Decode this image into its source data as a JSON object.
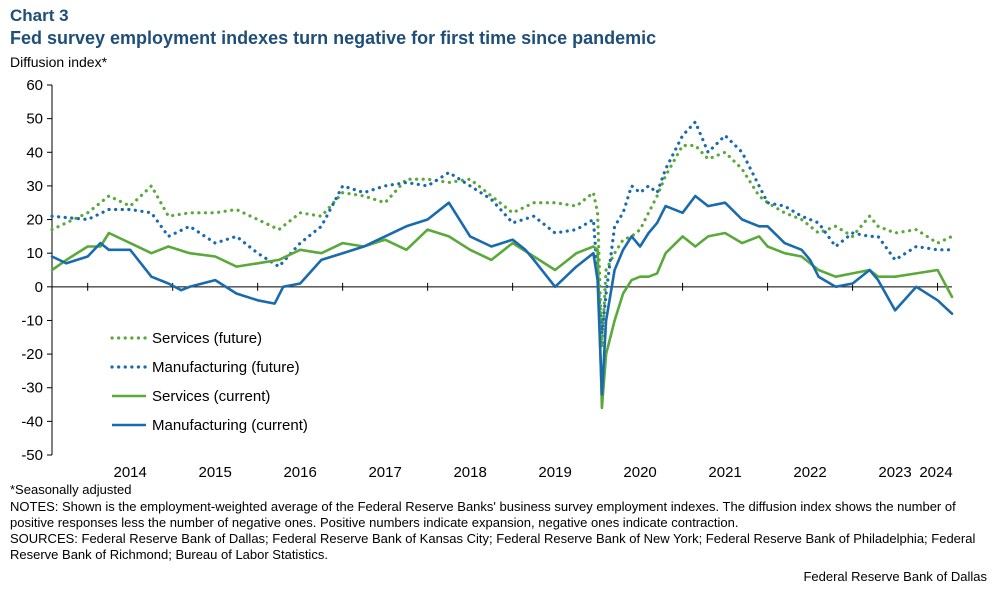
{
  "header": {
    "chart_number": "Chart 3",
    "title": "Fed survey employment indexes turn negative for first time since pandemic",
    "y_label": "Diffusion index*"
  },
  "colors": {
    "services": "#5aa93a",
    "manufacturing": "#1a6aae",
    "title": "#1f4e79"
  },
  "chart_data": {
    "type": "line",
    "title": "Fed survey employment indexes turn negative for first time since pandemic",
    "ylabel": "Diffusion index*",
    "xlabel": "",
    "ylim": [
      -50,
      60
    ],
    "yticks": [
      "60",
      "50",
      "40",
      "30",
      "20",
      "10",
      "0",
      "-10",
      "-20",
      "-30",
      "-40",
      "-50"
    ],
    "ytick_values": [
      60,
      50,
      40,
      30,
      20,
      10,
      0,
      -10,
      -20,
      -30,
      -40,
      -50
    ],
    "xlim": [
      2013.58,
      2024.17
    ],
    "xtick_labels": [
      "2014",
      "2015",
      "2016",
      "2017",
      "2018",
      "2019",
      "2020",
      "2021",
      "2022",
      "2023",
      "2024"
    ],
    "xtick_centers": [
      2014.5,
      2015.5,
      2016.5,
      2017.5,
      2018.5,
      2019.5,
      2020.5,
      2021.5,
      2022.5,
      2023.5,
      2024.5
    ],
    "grid": false,
    "legend_position": "bottom-left",
    "series": [
      {
        "name": "Services (future)",
        "style": "dotted",
        "color_key": "services",
        "x": [
          2013.58,
          2014.0,
          2014.25,
          2014.5,
          2014.75,
          2014.95,
          2015.2,
          2015.5,
          2015.75,
          2016.0,
          2016.25,
          2016.5,
          2016.75,
          2017.0,
          2017.25,
          2017.5,
          2017.75,
          2018.0,
          2018.25,
          2018.5,
          2018.75,
          2019.0,
          2019.25,
          2019.5,
          2019.75,
          2019.95,
          2020.0,
          2020.05,
          2020.1,
          2020.2,
          2020.3,
          2020.4,
          2020.5,
          2020.6,
          2020.7,
          2020.8,
          2021.0,
          2021.15,
          2021.3,
          2021.5,
          2021.7,
          2021.9,
          2022.0,
          2022.2,
          2022.4,
          2022.6,
          2022.8,
          2023.0,
          2023.2,
          2023.3,
          2023.5,
          2023.75,
          2024.0,
          2024.17
        ],
        "y": [
          17,
          22,
          27,
          24,
          30,
          21,
          22,
          22,
          23,
          20,
          17,
          22,
          21,
          28,
          27,
          25,
          32,
          32,
          31,
          32,
          27,
          22,
          25,
          25,
          24,
          28,
          22,
          -18,
          5,
          10,
          14,
          15,
          17,
          22,
          27,
          33,
          42,
          42,
          38,
          40,
          35,
          27,
          25,
          22,
          20,
          16,
          18,
          15,
          21,
          18,
          16,
          17,
          13,
          15
        ]
      },
      {
        "name": "Manufacturing (future)",
        "style": "dotted",
        "color_key": "manufacturing",
        "x": [
          2013.58,
          2014.0,
          2014.25,
          2014.5,
          2014.75,
          2014.95,
          2015.2,
          2015.5,
          2015.75,
          2016.0,
          2016.25,
          2016.5,
          2016.75,
          2017.0,
          2017.25,
          2017.5,
          2017.75,
          2018.0,
          2018.25,
          2018.5,
          2018.75,
          2019.0,
          2019.25,
          2019.5,
          2019.75,
          2019.95,
          2020.0,
          2020.05,
          2020.1,
          2020.2,
          2020.3,
          2020.4,
          2020.5,
          2020.6,
          2020.7,
          2020.8,
          2021.0,
          2021.15,
          2021.3,
          2021.5,
          2021.7,
          2021.9,
          2022.0,
          2022.2,
          2022.4,
          2022.6,
          2022.8,
          2023.0,
          2023.2,
          2023.3,
          2023.5,
          2023.75,
          2024.0,
          2024.17
        ],
        "y": [
          21,
          20,
          23,
          23,
          22,
          15,
          18,
          13,
          15,
          10,
          6,
          13,
          18,
          30,
          28,
          30,
          31,
          30,
          34,
          30,
          26,
          19,
          21,
          16,
          17,
          20,
          3,
          -14,
          -2,
          18,
          22,
          30,
          28,
          30,
          28,
          35,
          45,
          49,
          40,
          45,
          40,
          30,
          25,
          24,
          21,
          19,
          12,
          16,
          15,
          15,
          8,
          12,
          11,
          11
        ]
      },
      {
        "name": "Services (current)",
        "style": "solid",
        "color_key": "services",
        "x": [
          2013.58,
          2013.75,
          2014.0,
          2014.15,
          2014.25,
          2014.5,
          2014.75,
          2014.95,
          2015.2,
          2015.5,
          2015.75,
          2016.0,
          2016.25,
          2016.5,
          2016.75,
          2017.0,
          2017.25,
          2017.5,
          2017.75,
          2018.0,
          2018.25,
          2018.5,
          2018.75,
          2019.0,
          2019.25,
          2019.5,
          2019.75,
          2019.95,
          2020.0,
          2020.05,
          2020.1,
          2020.2,
          2020.3,
          2020.4,
          2020.5,
          2020.6,
          2020.7,
          2020.8,
          2021.0,
          2021.15,
          2021.3,
          2021.5,
          2021.7,
          2021.9,
          2022.0,
          2022.2,
          2022.4,
          2022.6,
          2022.8,
          2023.0,
          2023.2,
          2023.3,
          2023.5,
          2023.75,
          2024.0,
          2024.17
        ],
        "y": [
          5,
          8,
          12,
          12,
          16,
          13,
          10,
          12,
          10,
          9,
          6,
          7,
          8,
          11,
          10,
          13,
          12,
          14,
          11,
          17,
          15,
          11,
          8,
          13,
          9,
          5,
          10,
          12,
          11,
          -36,
          -20,
          -10,
          -2,
          2,
          3,
          3,
          4,
          10,
          15,
          12,
          15,
          16,
          13,
          15,
          12,
          10,
          9,
          5,
          3,
          4,
          5,
          3,
          3,
          4,
          5,
          -3
        ]
      },
      {
        "name": "Manufacturing (current)",
        "style": "solid",
        "color_key": "manufacturing",
        "x": [
          2013.58,
          2013.75,
          2014.0,
          2014.15,
          2014.25,
          2014.5,
          2014.75,
          2014.95,
          2015.1,
          2015.2,
          2015.5,
          2015.75,
          2016.0,
          2016.2,
          2016.3,
          2016.5,
          2016.75,
          2017.0,
          2017.25,
          2017.5,
          2017.75,
          2018.0,
          2018.25,
          2018.5,
          2018.75,
          2019.0,
          2019.15,
          2019.25,
          2019.5,
          2019.75,
          2019.95,
          2020.0,
          2020.05,
          2020.1,
          2020.2,
          2020.3,
          2020.4,
          2020.5,
          2020.6,
          2020.7,
          2020.8,
          2021.0,
          2021.15,
          2021.3,
          2021.5,
          2021.7,
          2021.9,
          2022.0,
          2022.2,
          2022.4,
          2022.5,
          2022.6,
          2022.8,
          2023.0,
          2023.2,
          2023.3,
          2023.5,
          2023.75,
          2024.0,
          2024.17
        ],
        "y": [
          9,
          7,
          9,
          13,
          11,
          11,
          3,
          1,
          -1,
          0,
          2,
          -2,
          -4,
          -5,
          0,
          1,
          8,
          10,
          12,
          15,
          18,
          20,
          25,
          15,
          12,
          14,
          11,
          8,
          0,
          6,
          10,
          2,
          -32,
          -10,
          5,
          11,
          15,
          12,
          16,
          19,
          24,
          22,
          27,
          24,
          25,
          20,
          18,
          18,
          13,
          11,
          8,
          3,
          0,
          1,
          5,
          2,
          -7,
          0,
          -4,
          -8
        ]
      }
    ]
  },
  "legend": [
    {
      "label": "Services (future)",
      "style": "dotted",
      "color_key": "services"
    },
    {
      "label": "Manufacturing (future)",
      "style": "dotted",
      "color_key": "manufacturing"
    },
    {
      "label": "Services (current)",
      "style": "solid",
      "color_key": "services"
    },
    {
      "label": "Manufacturing (current)",
      "style": "solid",
      "color_key": "manufacturing"
    }
  ],
  "footer": {
    "footnote": "*Seasonally adjusted",
    "notes": "NOTES: Shown is the employment-weighted average of the Federal Reserve Banks' business survey employment indexes. The diffusion index shows the number of positive responses less the number of negative ones. Positive numbers indicate expansion, negative ones indicate contraction.",
    "sources": "SOURCES: Federal Reserve Bank of Dallas; Federal Reserve Bank of Kansas City; Federal Reserve Bank of New York; Federal Reserve Bank of Philadelphia; Federal Reserve Bank of Richmond; Bureau of Labor Statistics.",
    "credit": "Federal Reserve Bank of Dallas"
  }
}
